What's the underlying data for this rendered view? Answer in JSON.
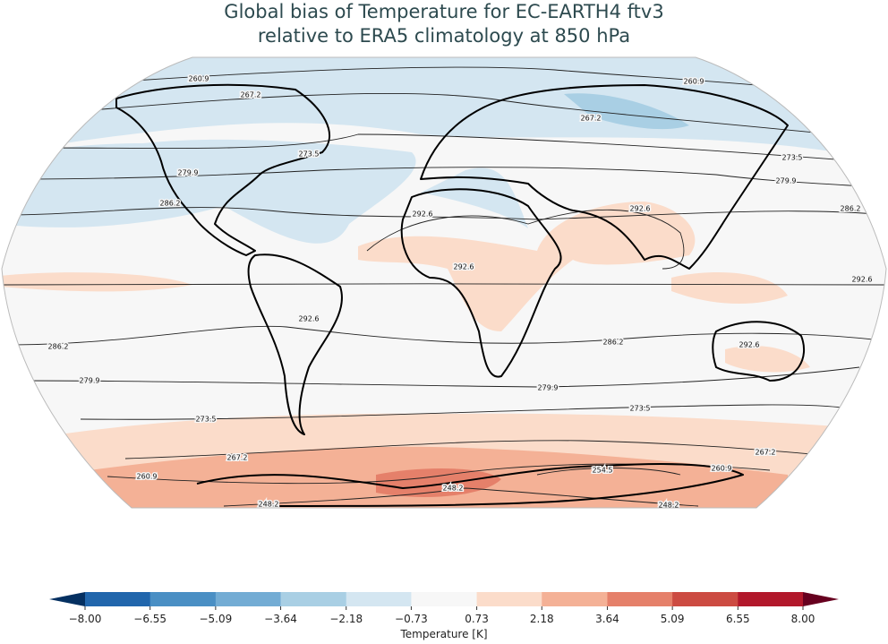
{
  "title_lines": [
    "Global bias of Temperature for EC-EARTH4 ftv3",
    "relative to ERA5 climatology at 850 hPa"
  ],
  "map": {
    "contour_levels": [
      248.2,
      254.5,
      260.9,
      267.2,
      273.5,
      279.9,
      286.2,
      292.6
    ]
  },
  "colorbar": {
    "label": "Temperature [K]",
    "ticks": [
      {
        "value": -8.0,
        "label": "−8.00"
      },
      {
        "value": -6.55,
        "label": "−6.55"
      },
      {
        "value": -5.09,
        "label": "−5.09"
      },
      {
        "value": -3.64,
        "label": "−3.64"
      },
      {
        "value": -2.18,
        "label": "−2.18"
      },
      {
        "value": -0.73,
        "label": "−0.73"
      },
      {
        "value": 0.73,
        "label": "0.73"
      },
      {
        "value": 2.18,
        "label": "2.18"
      },
      {
        "value": 3.64,
        "label": "3.64"
      },
      {
        "value": 5.09,
        "label": "5.09"
      },
      {
        "value": 6.55,
        "label": "6.55"
      },
      {
        "value": 8.0,
        "label": "8.00"
      }
    ],
    "colors": [
      "#2166ac",
      "#4a8fc4",
      "#73acd4",
      "#a9cfe4",
      "#d4e6f1",
      "#f7f7f7",
      "#fbdcca",
      "#f4b196",
      "#e5806a",
      "#cc4b42",
      "#b2182b"
    ],
    "extend_colors": [
      "#053061",
      "#67001f"
    ]
  }
}
